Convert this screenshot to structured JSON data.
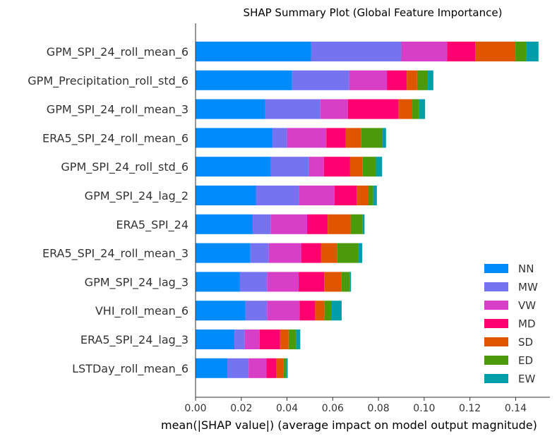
{
  "chart_data": {
    "type": "bar",
    "orientation": "horizontal",
    "stacked": true,
    "title": "SHAP Summary Plot (Global Feature Importance)",
    "xlabel": "mean(|SHAP value|) (average impact on model output magnitude)",
    "ylabel": "",
    "xlim": [
      0,
      0.155
    ],
    "xticks": [
      "0.00",
      "0.02",
      "0.04",
      "0.06",
      "0.08",
      "0.10",
      "0.12",
      "0.14"
    ],
    "grid": false,
    "legend_position": "bottom-right",
    "categories": [
      "GPM_SPI_24_roll_mean_6",
      "GPM_Precipitation_roll_std_6",
      "GPM_SPI_24_roll_mean_3",
      "ERA5_SPI_24_roll_mean_6",
      "GPM_SPI_24_roll_std_6",
      "GPM_SPI_24_lag_2",
      "ERA5_SPI_24",
      "ERA5_SPI_24_roll_mean_3",
      "GPM_SPI_24_lag_3",
      "VHI_roll_mean_6",
      "ERA5_SPI_24_lag_3",
      "LSTDay_roll_mean_6"
    ],
    "series": [
      {
        "name": "NN",
        "color": "#008bfb",
        "values": [
          0.0505,
          0.0422,
          0.0304,
          0.0335,
          0.0329,
          0.0264,
          0.025,
          0.024,
          0.0193,
          0.0218,
          0.017,
          0.0139
        ]
      },
      {
        "name": "MW",
        "color": "#7673f0",
        "values": [
          0.0395,
          0.025,
          0.0242,
          0.0065,
          0.0166,
          0.0188,
          0.0078,
          0.008,
          0.012,
          0.0095,
          0.0045,
          0.0093
        ]
      },
      {
        "name": "VW",
        "color": "#d63fc6",
        "values": [
          0.02,
          0.0165,
          0.012,
          0.0172,
          0.0066,
          0.0156,
          0.016,
          0.0142,
          0.0138,
          0.0142,
          0.0065,
          0.0078
        ]
      },
      {
        "name": "MD",
        "color": "#ff0070",
        "values": [
          0.0123,
          0.0087,
          0.0222,
          0.0084,
          0.0115,
          0.0097,
          0.009,
          0.0086,
          0.0112,
          0.0068,
          0.009,
          0.0044
        ]
      },
      {
        "name": "SD",
        "color": "#e05500",
        "values": [
          0.0176,
          0.0045,
          0.006,
          0.0069,
          0.0055,
          0.005,
          0.01,
          0.0072,
          0.0075,
          0.004,
          0.0037,
          0.003
        ]
      },
      {
        "name": "ED",
        "color": "#4c9a0c",
        "values": [
          0.0047,
          0.0047,
          0.0028,
          0.0093,
          0.0058,
          0.0022,
          0.0053,
          0.0092,
          0.0036,
          0.003,
          0.0032,
          0.0014
        ]
      },
      {
        "name": "EW",
        "color": "#009ea8",
        "values": [
          0.0054,
          0.0024,
          0.0028,
          0.0015,
          0.0027,
          0.0016,
          0.0008,
          0.0017,
          0.0006,
          0.0046,
          0.0019,
          0.0005
        ]
      }
    ]
  }
}
